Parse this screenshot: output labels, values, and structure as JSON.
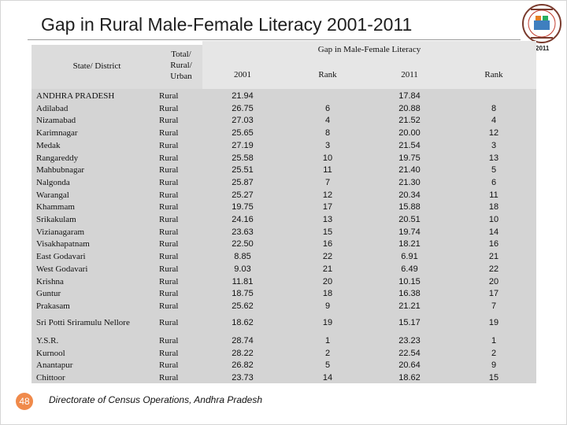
{
  "title": "Gap in Rural Male-Female Literacy 2001-2011",
  "census_logo": {
    "icon": "census-emblem-icon",
    "year": "2011"
  },
  "headers": {
    "state_district": "State/ District",
    "total_rural_urban": [
      "Total/",
      "Rural/",
      "Urban"
    ],
    "gap_group": "Gap in Male-Female Literacy",
    "y2001": "2001",
    "rank1": "Rank",
    "y2011": "2011",
    "rank2": "Rank"
  },
  "rows": [
    {
      "name": "ANDHRA PRADESH",
      "type": "Rural",
      "v2001": "21.94",
      "r2001": "",
      "v2011": "17.84",
      "r2011": ""
    },
    {
      "name": "Adilabad",
      "type": "Rural",
      "v2001": "26.75",
      "r2001": "6",
      "v2011": "20.88",
      "r2011": "8"
    },
    {
      "name": "Nizamabad",
      "type": "Rural",
      "v2001": "27.03",
      "r2001": "4",
      "v2011": "21.52",
      "r2011": "4"
    },
    {
      "name": "Karimnagar",
      "type": "Rural",
      "v2001": "25.65",
      "r2001": "8",
      "v2011": "20.00",
      "r2011": "12"
    },
    {
      "name": "Medak",
      "type": "Rural",
      "v2001": "27.19",
      "r2001": "3",
      "v2011": "21.54",
      "r2011": "3"
    },
    {
      "name": "Rangareddy",
      "type": "Rural",
      "v2001": "25.58",
      "r2001": "10",
      "v2011": "19.75",
      "r2011": "13"
    },
    {
      "name": "Mahbubnagar",
      "type": "Rural",
      "v2001": "25.51",
      "r2001": "11",
      "v2011": "21.40",
      "r2011": "5"
    },
    {
      "name": "Nalgonda",
      "type": "Rural",
      "v2001": "25.87",
      "r2001": "7",
      "v2011": "21.30",
      "r2011": "6"
    },
    {
      "name": "Warangal",
      "type": "Rural",
      "v2001": "25.27",
      "r2001": "12",
      "v2011": "20.34",
      "r2011": "11"
    },
    {
      "name": "Khammam",
      "type": "Rural",
      "v2001": "19.75",
      "r2001": "17",
      "v2011": "15.88",
      "r2011": "18"
    },
    {
      "name": "Srikakulam",
      "type": "Rural",
      "v2001": "24.16",
      "r2001": "13",
      "v2011": "20.51",
      "r2011": "10"
    },
    {
      "name": "Vizianagaram",
      "type": "Rural",
      "v2001": "23.63",
      "r2001": "15",
      "v2011": "19.74",
      "r2011": "14"
    },
    {
      "name": "Visakhapatnam",
      "type": "Rural",
      "v2001": "22.50",
      "r2001": "16",
      "v2011": "18.21",
      "r2011": "16"
    },
    {
      "name": "East Godavari",
      "type": "Rural",
      "v2001": "8.85",
      "r2001": "22",
      "v2011": "6.91",
      "r2011": "21"
    },
    {
      "name": "West Godavari",
      "type": "Rural",
      "v2001": "9.03",
      "r2001": "21",
      "v2011": "6.49",
      "r2011": "22"
    },
    {
      "name": "Krishna",
      "type": "Rural",
      "v2001": "11.81",
      "r2001": "20",
      "v2011": "10.15",
      "r2011": "20"
    },
    {
      "name": "Guntur",
      "type": "Rural",
      "v2001": "18.75",
      "r2001": "18",
      "v2011": "16.38",
      "r2011": "17"
    },
    {
      "name": "Prakasam",
      "type": "Rural",
      "v2001": "25.62",
      "r2001": "9",
      "v2011": "21.21",
      "r2011": "7"
    },
    {
      "name": "Sri Potti Sriramulu Nellore",
      "type": "Rural",
      "v2001": "18.62",
      "r2001": "19",
      "v2011": "15.17",
      "r2011": "19"
    },
    {
      "name": "Y.S.R.",
      "type": "Rural",
      "v2001": "28.74",
      "r2001": "1",
      "v2011": "23.23",
      "r2011": "1"
    },
    {
      "name": "Kurnool",
      "type": "Rural",
      "v2001": "28.22",
      "r2001": "2",
      "v2011": "22.54",
      "r2011": "2"
    },
    {
      "name": "Anantapur",
      "type": "Rural",
      "v2001": "26.82",
      "r2001": "5",
      "v2011": "20.64",
      "r2011": "9"
    },
    {
      "name": "Chittoor",
      "type": "Rural",
      "v2001": "23.73",
      "r2001": "14",
      "v2011": "18.62",
      "r2011": "15"
    }
  ],
  "page_number": "48",
  "footer": "Directorate of Census Operations, Andhra Pradesh"
}
